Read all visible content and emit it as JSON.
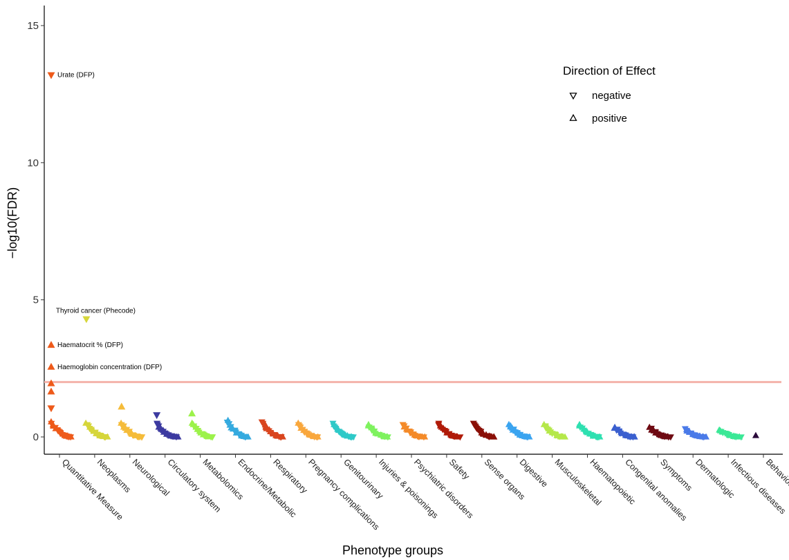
{
  "chart_data": {
    "type": "scatter",
    "title": "",
    "xlabel": "Phenotype groups",
    "ylabel": "-log10(FDR)",
    "ylim": [
      -0.6,
      15.7
    ],
    "y_ticks": [
      0,
      5,
      10,
      15
    ],
    "threshold_line": {
      "y": 2.0,
      "color": "#f4b3aa"
    },
    "categories": [
      {
        "name": "Quantitative Measure",
        "color": "#ee5a1a"
      },
      {
        "name": "Neoplasms",
        "color": "#d6d63a"
      },
      {
        "name": "Neurological",
        "color": "#f5bc3a"
      },
      {
        "name": "Circulatory system",
        "color": "#3c3aa0"
      },
      {
        "name": "Metabolomics",
        "color": "#9cf24a"
      },
      {
        "name": "Endocrine/Metabolic",
        "color": "#35aadf"
      },
      {
        "name": "Respiratory",
        "color": "#d9451e"
      },
      {
        "name": "Pregnancy complications",
        "color": "#f9a73c"
      },
      {
        "name": "Genitourinary",
        "color": "#2ec9c8"
      },
      {
        "name": "Injuries & poisonings",
        "color": "#7ef25e"
      },
      {
        "name": "Psychiatric disorders",
        "color": "#f48a28"
      },
      {
        "name": "Safety",
        "color": "#b01a08"
      },
      {
        "name": "Sense organs",
        "color": "#8a0f07"
      },
      {
        "name": "Digestive",
        "color": "#3aa4f0"
      },
      {
        "name": "Musculoskeletal",
        "color": "#b5e84a"
      },
      {
        "name": "Haematopoietic",
        "color": "#2ee0b0"
      },
      {
        "name": "Congenital anomalies",
        "color": "#3a5fcf"
      },
      {
        "name": "Symptoms",
        "color": "#6e0a12"
      },
      {
        "name": "Dermatologic",
        "color": "#4a7ae8"
      },
      {
        "name": "Infectious diseases",
        "color": "#3ae896"
      },
      {
        "name": "Behaviour",
        "color": "#2a0a3a"
      }
    ],
    "highlighted_points": [
      {
        "category": "Quantitative Measure",
        "y": 13.2,
        "direction": "negative",
        "label": "Urate (DFP)"
      },
      {
        "category": "Neoplasms",
        "y": 4.3,
        "direction": "negative",
        "label": "Thyroid cancer (Phecode)"
      },
      {
        "category": "Quantitative Measure",
        "y": 3.35,
        "direction": "positive",
        "label": "Haematocrit % (DFP)"
      },
      {
        "category": "Quantitative Measure",
        "y": 2.55,
        "direction": "positive",
        "label": "Haemoglobin concentration (DFP)"
      }
    ],
    "other_points": [
      {
        "category": "Quantitative Measure",
        "y": 1.95,
        "direction": "positive"
      },
      {
        "category": "Quantitative Measure",
        "y": 1.65,
        "direction": "positive"
      },
      {
        "category": "Quantitative Measure",
        "y": 1.05,
        "direction": "negative"
      },
      {
        "category": "Neurological",
        "y": 1.1,
        "direction": "positive"
      },
      {
        "category": "Circulatory system",
        "y": 0.8,
        "direction": "negative"
      },
      {
        "category": "Metabolomics",
        "y": 0.85,
        "direction": "positive"
      }
    ],
    "cluster_max": [
      0.55,
      0.5,
      0.5,
      0.5,
      0.5,
      0.6,
      0.55,
      0.5,
      0.5,
      0.45,
      0.45,
      0.5,
      0.5,
      0.45,
      0.45,
      0.45,
      0.35,
      0.35,
      0.3,
      0.25,
      0.05
    ],
    "legend": {
      "title": "Direction of Effect",
      "position": "top-right",
      "items": [
        {
          "shape": "down-triangle",
          "label": "negative"
        },
        {
          "shape": "up-triangle",
          "label": "positive"
        }
      ]
    },
    "grid": false
  }
}
